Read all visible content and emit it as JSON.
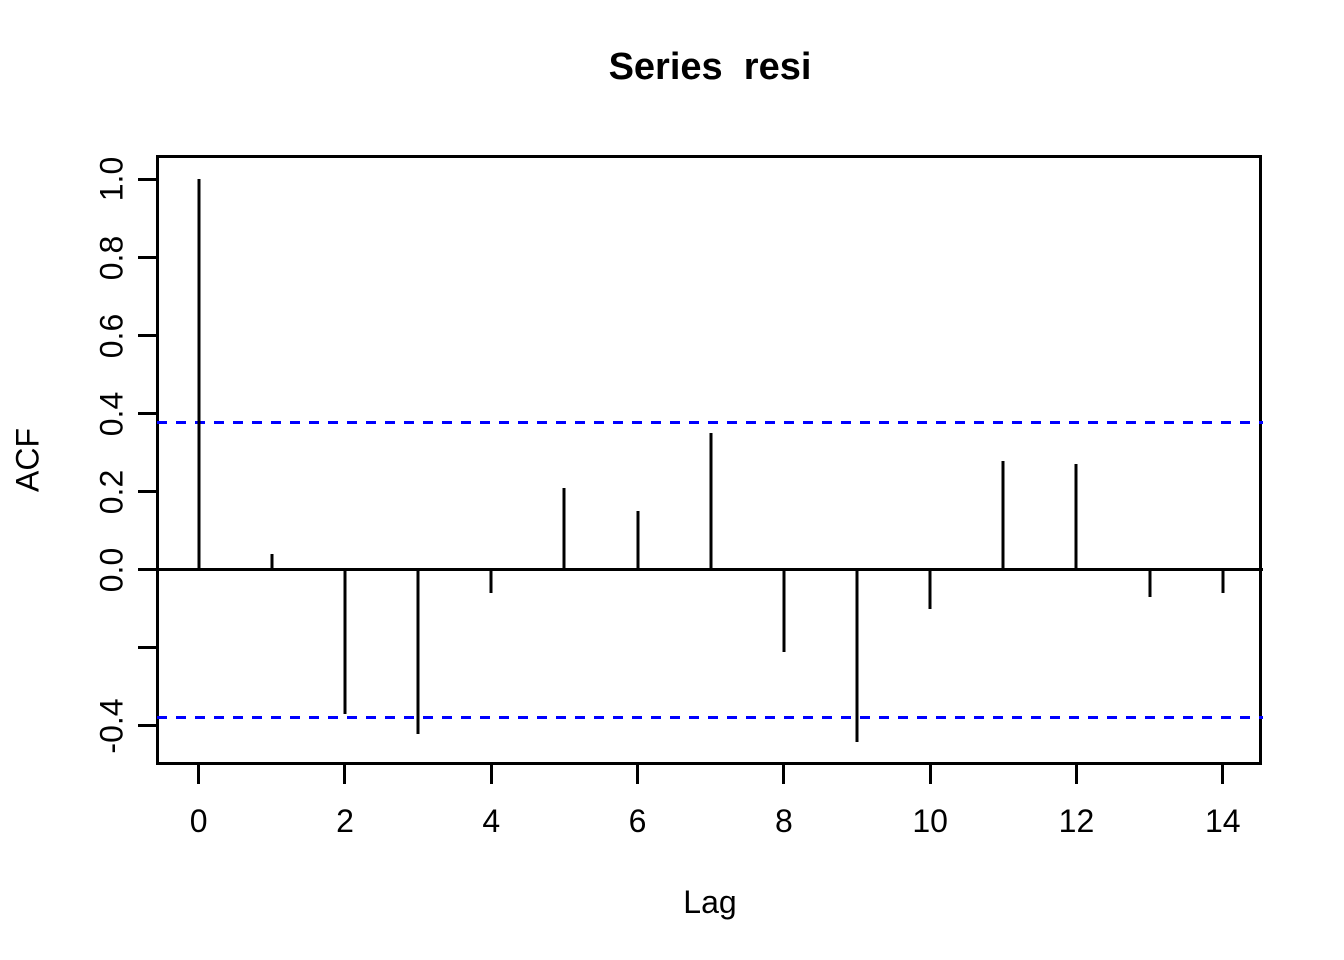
{
  "chart_data": {
    "type": "bar",
    "title": "Series  resi",
    "xlabel": "Lag",
    "ylabel": "ACF",
    "x": [
      0,
      1,
      2,
      3,
      4,
      5,
      6,
      7,
      8,
      9,
      10,
      11,
      12,
      13,
      14
    ],
    "values": [
      1.0,
      0.04,
      -0.37,
      -0.42,
      -0.06,
      0.21,
      0.15,
      0.35,
      -0.21,
      -0.44,
      -0.1,
      0.28,
      0.27,
      -0.07,
      -0.06
    ],
    "confidence_bounds": [
      0.378,
      -0.378
    ],
    "x_ticks": [
      0,
      2,
      4,
      6,
      8,
      10,
      12,
      14
    ],
    "x_tick_labels": [
      "0",
      "2",
      "4",
      "6",
      "8",
      "10",
      "12",
      "14"
    ],
    "y_ticks": [
      1.0,
      0.8,
      0.6,
      0.4,
      0.2,
      0.0,
      -0.2,
      -0.4
    ],
    "y_tick_labels": [
      "1.0",
      "0.8",
      "0.6",
      "0.4",
      "0.2",
      "0.0",
      "",
      "-0.4"
    ],
    "xlim": [
      -0.57,
      14.55
    ],
    "ylim": [
      -0.5,
      1.06
    ],
    "grid": "off",
    "legend": "none",
    "colors": {
      "bar": "#000000",
      "axis": "#000000",
      "confidence_line": "#0000ff",
      "background": "#ffffff"
    }
  }
}
